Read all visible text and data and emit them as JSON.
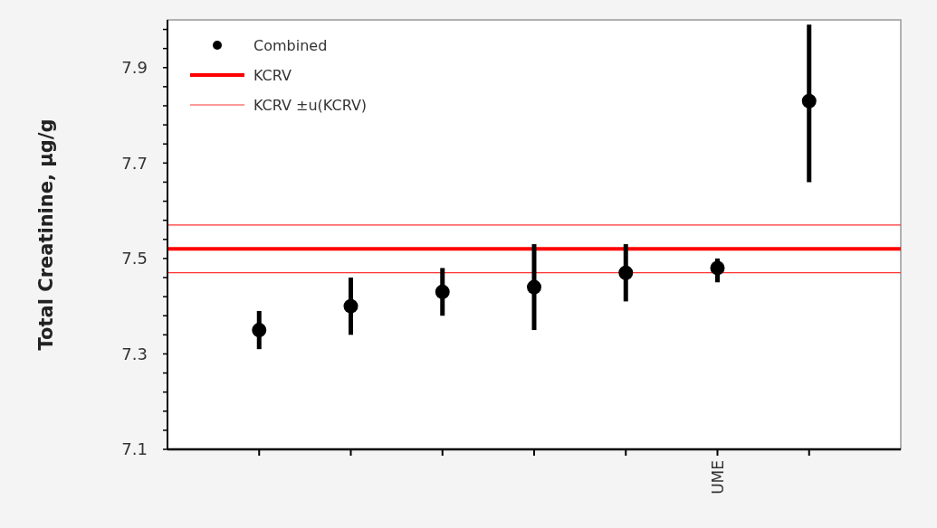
{
  "chart_data": {
    "type": "scatter",
    "ylabel": "Total Creatinine, µg/g",
    "categories": [
      null,
      null,
      null,
      null,
      null,
      "UME",
      null
    ],
    "series": [
      {
        "name": "Combined",
        "color": "#000000",
        "values": [
          7.35,
          7.4,
          7.43,
          7.44,
          7.47,
          7.48,
          7.83
        ],
        "errors": [
          [
            7.31,
            7.39
          ],
          [
            7.34,
            7.46
          ],
          [
            7.38,
            7.48
          ],
          [
            7.35,
            7.53
          ],
          [
            7.41,
            7.53
          ],
          [
            7.45,
            7.5
          ],
          [
            7.66,
            7.99
          ]
        ]
      }
    ],
    "ylim": [
      7.1,
      8.0
    ],
    "yticks": [
      7.1,
      {
        "value": 7.14,
        "label": null
      },
      {
        "value": 7.18,
        "label": null
      },
      {
        "value": 7.22,
        "label": null
      },
      {
        "value": 7.26,
        "label": null
      },
      7.3,
      {
        "value": 7.34,
        "label": null
      },
      {
        "value": 7.38,
        "label": null
      },
      {
        "value": 7.42,
        "label": null
      },
      {
        "value": 7.46,
        "label": null
      },
      7.5,
      {
        "value": 7.54,
        "label": null
      },
      {
        "value": 7.58,
        "label": null
      },
      {
        "value": 7.62,
        "label": null
      },
      {
        "value": 7.66,
        "label": null
      },
      7.7,
      {
        "value": 7.74,
        "label": null
      },
      {
        "value": 7.78,
        "label": null
      },
      {
        "value": 7.82,
        "label": null
      },
      {
        "value": 7.86,
        "label": null
      },
      7.9,
      {
        "value": 7.94,
        "label": null
      },
      {
        "value": 7.98,
        "label": null
      }
    ],
    "ref_lines": [
      {
        "axis": "y",
        "value": 7.52,
        "label": "KCRV",
        "color": "#ff0000"
      },
      {
        "axis": "y",
        "value": 7.57,
        "label": "KCRV ±u(KCRV)",
        "color": "#ff3333"
      },
      {
        "axis": "y",
        "value": 7.47,
        "label": null,
        "color": "#ff3333"
      }
    ],
    "marker": "circle",
    "legend": "top left",
    "grid": false
  }
}
